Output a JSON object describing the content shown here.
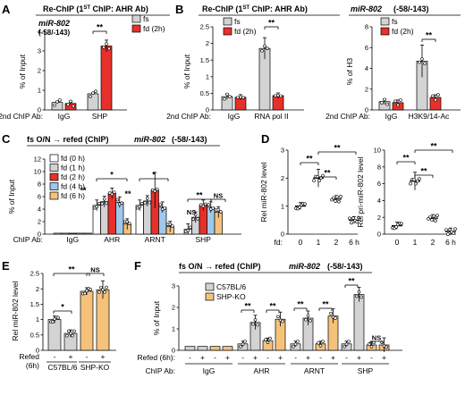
{
  "colors": {
    "gray": "#d3d3d3",
    "red": "#e8302a",
    "blue": "#9fc8ea",
    "orange": "#f5c27a",
    "white": "#ffffff"
  },
  "panels": {
    "A": {
      "label": "A",
      "header": "Re-ChIP (1",
      "header_sup": "ST",
      "header_tail": " ChIP: AHR Ab)",
      "gene": "miR-802",
      "gene_sub": "(-58/-143)",
      "ylabel": "% of Input",
      "chip2_label": "2nd ChIP Ab:"
    },
    "B": {
      "label": "B",
      "header": "Re-ChIP (1",
      "header_sup": "ST",
      "header_tail": " ChIP: AHR Ab)",
      "gene": "miR-802",
      "gene_sub": "(-58/-143)",
      "ylabel_left": "% of Input",
      "ylabel_right": "% of H3",
      "chip2_label": "2nd ChIP Ab:"
    },
    "C": {
      "label": "C",
      "header": "fs O/N → refed (ChIP)",
      "gene": "miR-802",
      "gene_sub": "(-58/-143)",
      "ylabel": "% of Input",
      "chip_label": "ChIP Ab:"
    },
    "D": {
      "label": "D",
      "ylabel_left": "Rel miR-802 level",
      "ylabel_right": "Rel pri-miR-802 level",
      "xlabel": "fd:"
    },
    "E": {
      "label": "E",
      "ylabel": "Rel miR-802 level",
      "refed_label": "Refed",
      "refed_sub": "(6h)"
    },
    "F": {
      "label": "F",
      "header": "fs O/N → refed (ChIP)",
      "gene": "miR-802",
      "gene_sub": "(-58/-143)",
      "ylabel": "% of Input",
      "refed_label": "Refed (6h):",
      "chip_label": "ChIP Ab:"
    }
  },
  "chart_data": [
    {
      "panel": "A",
      "type": "bar",
      "categories": [
        "IgG",
        "SHP"
      ],
      "series": [
        {
          "name": "fs",
          "color": "#d3d3d3",
          "values": [
            0.38,
            0.82
          ]
        },
        {
          "name": "fd (2h)",
          "color": "#e8302a",
          "values": [
            0.33,
            3.25
          ]
        }
      ],
      "ylim": [
        0,
        4
      ],
      "yticks": [
        0,
        1,
        2,
        3,
        4
      ],
      "annotations": [
        "**"
      ]
    },
    {
      "panel": "B-left",
      "type": "bar",
      "categories": [
        "IgG",
        "RNA pol II"
      ],
      "series": [
        {
          "name": "fs",
          "color": "#d3d3d3",
          "values": [
            0.4,
            1.85
          ]
        },
        {
          "name": "fd (2h)",
          "color": "#e8302a",
          "values": [
            0.38,
            0.43
          ]
        }
      ],
      "ylim": [
        0,
        2.5
      ],
      "yticks": [
        0,
        0.5,
        1.0,
        1.5,
        2.0,
        2.5
      ],
      "annotations": [
        "**"
      ]
    },
    {
      "panel": "B-right",
      "type": "bar",
      "categories": [
        "IgG",
        "H3K9/14-Ac"
      ],
      "series": [
        {
          "name": "fs",
          "color": "#d3d3d3",
          "values": [
            0.8,
            4.7
          ]
        },
        {
          "name": "fd (2h)",
          "color": "#e8302a",
          "values": [
            0.7,
            1.2
          ]
        }
      ],
      "ylim": [
        0,
        8
      ],
      "yticks": [
        0,
        2,
        4,
        6,
        8
      ],
      "annotations": [
        "**"
      ]
    },
    {
      "panel": "C",
      "type": "bar",
      "categories": [
        "IgG",
        "AHR",
        "ARNT",
        "SHP"
      ],
      "series": [
        {
          "name": "fd (0 h)",
          "color": "#ffffff",
          "values": [
            0.15,
            4.6,
            4.6,
            0.8
          ]
        },
        {
          "name": "fd (1 h)",
          "color": "#d3d3d3",
          "values": [
            0.15,
            5.2,
            5.3,
            2.7
          ]
        },
        {
          "name": "fd (2 h)",
          "color": "#e8302a",
          "values": [
            0.15,
            6.5,
            7.0,
            4.6
          ]
        },
        {
          "name": "fd (4 h)",
          "color": "#9fc8ea",
          "values": [
            0.15,
            5.1,
            4.3,
            4.3
          ]
        },
        {
          "name": "fd (6 h)",
          "color": "#f5c27a",
          "values": [
            0.15,
            1.6,
            1.2,
            3.5
          ]
        }
      ],
      "ylim": [
        0,
        12
      ],
      "yticks": [
        0,
        2,
        4,
        6,
        8,
        10,
        12
      ],
      "annotations": [
        "**",
        "*",
        "**",
        "*",
        "**",
        "NS",
        "NS"
      ]
    },
    {
      "panel": "D-left",
      "type": "bar",
      "categories": [
        "0",
        "1",
        "2",
        "6 h"
      ],
      "values": [
        1.0,
        2.0,
        1.25,
        0.5
      ],
      "color": "#000000",
      "ylim": [
        0,
        3
      ],
      "yticks": [
        0,
        1,
        2,
        3
      ],
      "annotations": [
        "**",
        "**",
        "**"
      ]
    },
    {
      "panel": "D-right",
      "type": "bar",
      "categories": [
        "0",
        "1",
        "2",
        "6 h"
      ],
      "values": [
        1.0,
        6.3,
        1.9,
        0.3
      ],
      "color": "#000000",
      "ylim": [
        0,
        10
      ],
      "yticks": [
        0,
        2,
        4,
        6,
        8,
        10
      ],
      "annotations": [
        "**",
        "**",
        "**"
      ]
    },
    {
      "panel": "E",
      "type": "bar",
      "categories": [
        "C57BL/6",
        "SHP-KO"
      ],
      "series": [
        {
          "name": "-",
          "values": [
            1.0,
            1.92
          ]
        },
        {
          "name": "+",
          "values": [
            0.55,
            1.97
          ]
        }
      ],
      "colors": [
        "#d3d3d3",
        "#f5c27a"
      ],
      "ylim": [
        0,
        2.5
      ],
      "yticks": [
        0,
        0.5,
        1.0,
        1.5,
        2.0,
        2.5
      ],
      "annotations": [
        "*",
        "**",
        "NS"
      ]
    },
    {
      "panel": "F",
      "type": "bar",
      "categories": [
        "IgG",
        "AHR",
        "ARNT",
        "SHP"
      ],
      "series": [
        {
          "name": "C57BL/6 -",
          "color": "#d3d3d3",
          "values": [
            0.18,
            0.3,
            0.3,
            0.3
          ]
        },
        {
          "name": "C57BL/6 +",
          "color": "#d3d3d3",
          "values": [
            0.18,
            1.3,
            1.5,
            2.6
          ]
        },
        {
          "name": "SHP-KO -",
          "color": "#f5c27a",
          "values": [
            0.18,
            0.45,
            0.3,
            0.25
          ]
        },
        {
          "name": "SHP-KO +",
          "color": "#f5c27a",
          "values": [
            0.18,
            1.45,
            1.6,
            0.25
          ]
        }
      ],
      "legend": [
        "C57BL/6",
        "SHP-KO"
      ],
      "ylim": [
        0,
        3
      ],
      "yticks": [
        0,
        1,
        2,
        3
      ],
      "annotations": [
        "**",
        "**",
        "**",
        "**",
        "**",
        "NS"
      ]
    }
  ]
}
